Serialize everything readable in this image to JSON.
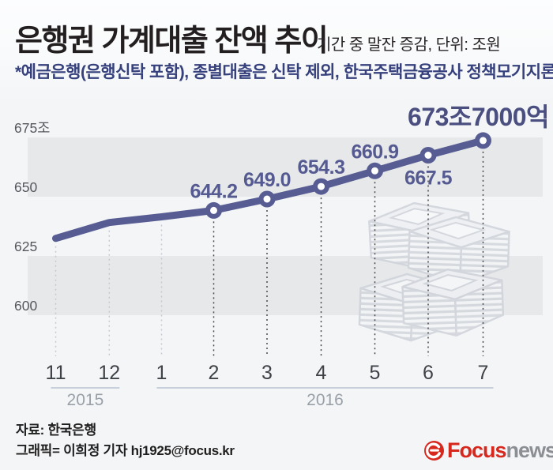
{
  "header": {
    "title": "은행권 가계대출 잔액 추이",
    "subtitle": "기간 중 말잔 증감, 단위: 조원",
    "note": "*예금은행(은행신탁 포함), 종별대출은 신탁 제외, 한국주택금융공사 정책모기지론 포함"
  },
  "chart_data": {
    "type": "line",
    "title": "은행권 가계대출 잔액 추이",
    "subtitle": "기간 중 말잔 증감, 단위: 조원",
    "unit": "조원",
    "x_labels": [
      "11",
      "12",
      "1",
      "2",
      "3",
      "4",
      "5",
      "6",
      "7"
    ],
    "year_groups": [
      {
        "label": "2015",
        "from_month": "11",
        "to_month": "12"
      },
      {
        "label": "2016",
        "from_month": "1",
        "to_month": "7"
      }
    ],
    "values": [
      632.4,
      639.1,
      641.5,
      644.2,
      649.0,
      654.3,
      660.9,
      667.5,
      673.7
    ],
    "point_labels": [
      null,
      null,
      null,
      "644.2",
      "649.0",
      "654.3",
      "660.9",
      "667.5",
      null
    ],
    "point_label_side": [
      null,
      null,
      null,
      "above",
      "above",
      "above",
      "above",
      "below",
      null
    ],
    "final_point_label": "673조7000억",
    "y_ticks": [
      {
        "label": "675조",
        "value": 675
      },
      {
        "label": "650",
        "value": 650
      },
      {
        "label": "625",
        "value": 625
      },
      {
        "label": "600",
        "value": 600
      }
    ],
    "ylim": [
      588,
      684
    ],
    "grid": "alternating-horizontal-bands",
    "legend": "none"
  },
  "footer": {
    "source": "자료: 한국은행",
    "credit": "그래픽= 이희정 기자 hj1925@focus.kr",
    "logo": {
      "focus": "Focus",
      "news": "news"
    }
  },
  "colors": {
    "line": "#575c93",
    "point_label": "#555a91",
    "final_label": "#4a4f80",
    "note_text": "#35407c",
    "band": "#e7e8ea",
    "y_label": "#54575c",
    "month_label": "#3f4246",
    "year_label": "#9aa0a8",
    "year_underline": "#c6cfda",
    "guide_dark": "#48494b",
    "guide_light": "#c5c9cf",
    "logo_red": "#d7281e",
    "logo_news_gray": "#8b8f94"
  }
}
